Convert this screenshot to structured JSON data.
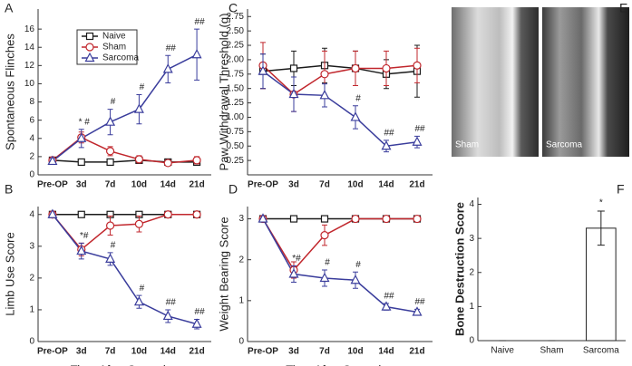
{
  "chart_data": [
    {
      "panel": "A",
      "type": "line",
      "ylabel": "Spontaneous Flinches",
      "categories": [
        "Pre-OP",
        "3d",
        "7d",
        "10d",
        "14d",
        "21d"
      ],
      "ylim": [
        0,
        18.2
      ],
      "yticks": [
        0,
        2,
        4,
        6,
        8,
        10,
        12,
        14,
        16
      ],
      "legend": "upper left",
      "series": [
        {
          "name": "Naive",
          "color": "#1a1a1a",
          "marker": "square",
          "values": [
            1.6,
            1.4,
            1.4,
            1.6,
            1.4,
            1.4
          ],
          "errors": [
            0.3,
            0.3,
            0.3,
            0.3,
            0.3,
            0.3
          ]
        },
        {
          "name": "Sham",
          "color": "#c1272d",
          "marker": "circle",
          "values": [
            1.6,
            4.1,
            2.6,
            1.7,
            1.3,
            1.6
          ],
          "errors": [
            0.3,
            0.6,
            0.5,
            0.4,
            0.3,
            0.4
          ]
        },
        {
          "name": "Sarcoma",
          "color": "#3a3d9c",
          "marker": "triangle",
          "values": [
            1.5,
            4.0,
            5.8,
            7.2,
            11.6,
            13.2
          ],
          "errors": [
            0.3,
            1.0,
            1.4,
            1.6,
            1.5,
            2.8
          ],
          "annotations": [
            null,
            "* #",
            "#",
            "#",
            "##",
            "##"
          ]
        }
      ]
    },
    {
      "panel": "B",
      "type": "line",
      "ylabel": "Limb Use Score",
      "xlabel": "Time After Operation",
      "categories": [
        "Pre-OP",
        "3d",
        "7d",
        "10d",
        "14d",
        "21d"
      ],
      "ylim": [
        0,
        4.25
      ],
      "yticks": [
        0,
        1,
        2,
        3,
        4
      ],
      "series": [
        {
          "color": "#1a1a1a",
          "marker": "square",
          "values": [
            4,
            4,
            4,
            4,
            4,
            4
          ],
          "errors": [
            0,
            0,
            0,
            0,
            0,
            0
          ]
        },
        {
          "color": "#c1272d",
          "marker": "circle",
          "values": [
            4,
            2.9,
            3.65,
            3.7,
            4,
            4
          ],
          "errors": [
            0,
            0.2,
            0.3,
            0.25,
            0,
            0
          ]
        },
        {
          "color": "#3a3d9c",
          "marker": "triangle",
          "values": [
            4,
            2.85,
            2.6,
            1.25,
            0.8,
            0.55
          ],
          "errors": [
            0,
            0.25,
            0.2,
            0.2,
            0.2,
            0.15
          ],
          "annotations": [
            null,
            "*#",
            "#",
            "#",
            "##",
            "##"
          ]
        }
      ]
    },
    {
      "panel": "C",
      "type": "line",
      "ylabel": "Paw Withdrawal Threshold (g)",
      "categories": [
        "Pre-OP",
        "3d",
        "7d",
        "10d",
        "14d",
        "21d"
      ],
      "ylim": [
        0,
        2.88
      ],
      "yticks": [
        {
          "value": 0.25,
          "label": "0.25"
        },
        {
          "value": 0.5,
          "label": "0.50"
        },
        {
          "value": 0.75,
          "label": "0.75"
        },
        {
          "value": 1,
          "label": "1.00"
        },
        {
          "value": 1.25,
          "label": "1.25"
        },
        {
          "value": 1.5,
          "label": "1.50"
        },
        {
          "value": 1.75,
          "label": "1.75"
        },
        {
          "value": 2,
          "label": "2.00"
        },
        {
          "value": 2.25,
          "label": "2.25"
        },
        {
          "value": 2.5,
          "label": "2.50"
        },
        {
          "value": 2.75,
          "label": "2.75"
        }
      ],
      "series": [
        {
          "color": "#1a1a1a",
          "marker": "square",
          "values": [
            1.8,
            1.85,
            1.9,
            1.85,
            1.75,
            1.8
          ],
          "errors": [
            0.3,
            0.3,
            0.3,
            0.3,
            0.25,
            0.45
          ]
        },
        {
          "color": "#c1272d",
          "marker": "circle",
          "values": [
            1.9,
            1.4,
            1.75,
            1.85,
            1.85,
            1.9
          ],
          "errors": [
            0.4,
            0.3,
            0.4,
            0.3,
            0.3,
            0.3
          ]
        },
        {
          "color": "#3a3d9c",
          "marker": "triangle",
          "values": [
            1.8,
            1.4,
            1.38,
            1.0,
            0.5,
            0.57
          ],
          "errors": [
            0.3,
            0.3,
            0.2,
            0.2,
            0.1,
            0.1
          ],
          "annotations": [
            null,
            null,
            null,
            "#",
            "##",
            "##"
          ]
        }
      ]
    },
    {
      "panel": "D",
      "type": "line",
      "ylabel": "Weight Bearing Score",
      "xlabel": "Time After Operation",
      "categories": [
        "Pre-OP",
        "3d",
        "7d",
        "10d",
        "14d",
        "21d"
      ],
      "ylim": [
        0,
        3.3
      ],
      "yticks": [
        0,
        1,
        2,
        3
      ],
      "series": [
        {
          "color": "#1a1a1a",
          "marker": "square",
          "values": [
            3,
            3,
            3,
            3,
            3,
            3
          ],
          "errors": [
            0,
            0,
            0,
            0,
            0,
            0
          ]
        },
        {
          "color": "#c1272d",
          "marker": "circle",
          "values": [
            3,
            1.75,
            2.6,
            3,
            3,
            3
          ],
          "errors": [
            0,
            0.2,
            0.25,
            0,
            0,
            0
          ]
        },
        {
          "color": "#3a3d9c",
          "marker": "triangle",
          "values": [
            3,
            1.65,
            1.55,
            1.5,
            0.85,
            0.72
          ],
          "errors": [
            0,
            0.2,
            0.2,
            0.2,
            0.08,
            0.07
          ],
          "annotations": [
            null,
            "*#",
            "#",
            "#",
            "##",
            "##"
          ]
        }
      ]
    },
    {
      "panel": "E",
      "type": "image",
      "labels": [
        "Sham",
        "Sarcoma"
      ]
    },
    {
      "panel": "F",
      "type": "bar",
      "ylabel": "Bone Destruction Score",
      "categories": [
        "Naive",
        "Sham",
        "Sarcoma"
      ],
      "values": [
        0,
        0,
        3.3
      ],
      "errors": [
        0,
        0,
        0.5
      ],
      "annotations": [
        null,
        null,
        "*"
      ],
      "color": "#ffffff",
      "ylim": [
        0,
        4.2
      ],
      "yticks": [
        0,
        1,
        2,
        3,
        4
      ]
    }
  ]
}
